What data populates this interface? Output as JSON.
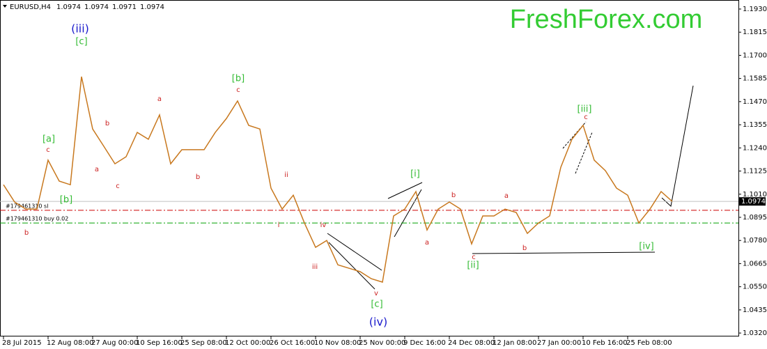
{
  "chart_data": {
    "type": "line",
    "title": "EURUSD,H4",
    "quote": [
      "1.0974",
      "1.0974",
      "1.0971",
      "1.0974"
    ],
    "watermark": "FreshForex.com",
    "categories": [
      "28 Jul 2015",
      null,
      null,
      null,
      "12 Aug 08:00",
      null,
      null,
      null,
      "27 Aug 00:00",
      null,
      null,
      null,
      "10 Sep 16:00",
      null,
      null,
      null,
      "25 Sep 08:00",
      null,
      null,
      null,
      "12 Oct 00:00",
      null,
      null,
      null,
      "26 Oct 16:00",
      null,
      null,
      null,
      "10 Nov 08:00",
      null,
      null,
      null,
      "25 Nov 00:00",
      null,
      null,
      null,
      "9 Dec 16:00",
      null,
      null,
      null,
      "24 Dec 08:00",
      null,
      null,
      null,
      "12 Jan 08:00",
      null,
      null,
      null,
      "27 Jan 00:00",
      null,
      null,
      null,
      "10 Feb 16:00",
      null,
      null,
      null,
      "25 Feb 08:00",
      null,
      null,
      null,
      null
    ],
    "series": [
      {
        "name": "EURUSD",
        "color": "#c8781e",
        "values": [
          1.1057,
          1.0971,
          1.0936,
          1.0936,
          1.1179,
          1.1075,
          1.1057,
          1.1594,
          1.1334,
          1.1248,
          1.1161,
          1.1196,
          1.1317,
          1.1283,
          1.1404,
          1.1161,
          1.1231,
          1.1231,
          1.1231,
          1.1317,
          1.1386,
          1.1473,
          1.1352,
          1.1334,
          1.104,
          1.0936,
          1.1005,
          1.0867,
          1.0746,
          1.078,
          1.0659,
          1.0642,
          1.0625,
          1.059,
          1.0573,
          1.0902,
          1.0936,
          1.1023,
          1.0832,
          1.0936,
          1.0971,
          1.0936,
          1.0763,
          1.0902,
          1.0902,
          1.0936,
          1.0919,
          1.0815,
          1.0867,
          1.0902,
          1.1144,
          1.1283,
          1.1352,
          1.1179,
          1.1127,
          1.104,
          1.1005,
          1.0867,
          1.0936,
          1.1023,
          1.0974
        ]
      }
    ],
    "ylim": [
      1.0303,
      1.1968
    ],
    "yticks": [
      {
        "value": 1.193,
        "label": "1.1930"
      },
      {
        "value": 1.1815,
        "label": "1.1815"
      },
      {
        "value": 1.17,
        "label": "1.1700"
      },
      {
        "value": 1.1585,
        "label": "1.1585"
      },
      {
        "value": 1.147,
        "label": "1.1470"
      },
      {
        "value": 1.1355,
        "label": "1.1355"
      },
      {
        "value": 1.124,
        "label": "1.1240"
      },
      {
        "value": 1.1125,
        "label": "1.1125"
      },
      {
        "value": 1.101,
        "label": "1.1010"
      },
      {
        "value": 1.0895,
        "label": "1.0895"
      },
      {
        "value": 1.078,
        "label": "1.0780"
      },
      {
        "value": 1.0665,
        "label": "1.0665"
      },
      {
        "value": 1.055,
        "label": "1.0550"
      },
      {
        "value": 1.0435,
        "label": "1.0435"
      },
      {
        "value": 1.032,
        "label": "1.0320"
      }
    ],
    "current_price": {
      "value": 1.0974,
      "label": "1.0974"
    },
    "orders": [
      {
        "label": "#179461310 sl",
        "value": 1.093,
        "color": "#cc0000"
      },
      {
        "label": "#179461310 buy 0.02",
        "value": 1.0867,
        "color": "#00a000"
      }
    ],
    "annotations": [
      "(iii)",
      "[c]",
      "[a]",
      "c",
      "[b]",
      "b",
      "a",
      "b",
      "c",
      "a",
      "b",
      "[b]",
      "c",
      "ii",
      "i",
      "iv",
      "iii",
      "v",
      "[c]",
      "(iv)",
      "[i]",
      "a",
      "b",
      "c",
      "[ii]",
      "b",
      "a",
      "[iii]",
      "c",
      "[iv]"
    ]
  }
}
